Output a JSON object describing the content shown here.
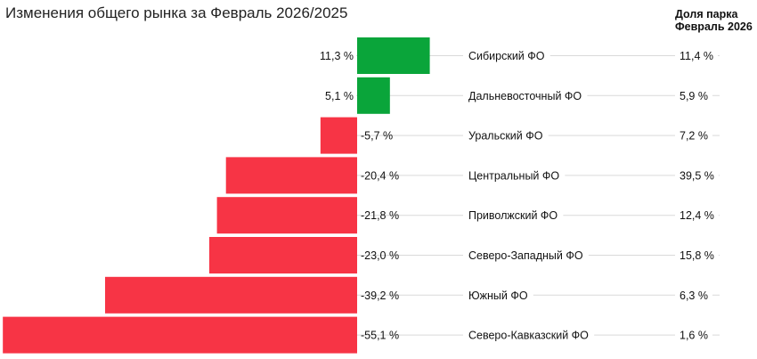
{
  "chart_data": {
    "type": "bar",
    "orientation": "horizontal",
    "title": "Изменения общего рынка за Февраль 2026/2025",
    "share_header": [
      "Доля парка",
      "Февраль 2026"
    ],
    "colors": {
      "positive": "#0aa53a",
      "negative": "#f73445",
      "separator": "#d9d9d9"
    },
    "grid": false,
    "categories": [
      "Сибирский ФО",
      "Дальневосточный ФО",
      "Уральский ФО",
      "Центральный ФО",
      "Приволжский ФО",
      "Северо-Западный ФО",
      "Южный ФО",
      "Северо-Кавказский ФО"
    ],
    "series": [
      {
        "values": [
          11.3,
          5.1,
          -5.7,
          -20.4,
          -21.8,
          -23.0,
          -39.2,
          -55.1
        ],
        "labels": [
          "11,3 %",
          "5,1 %",
          "-5,7 %",
          "-20,4 %",
          "-21,8 %",
          "-23,0 %",
          "-39,2 %",
          "-55,1 %"
        ]
      }
    ],
    "share_values": [
      "11,4 %",
      "5,9 %",
      "7,2 %",
      "39,5 %",
      "12,4 %",
      "15,8 %",
      "6,3 %",
      "1,6 %"
    ]
  }
}
